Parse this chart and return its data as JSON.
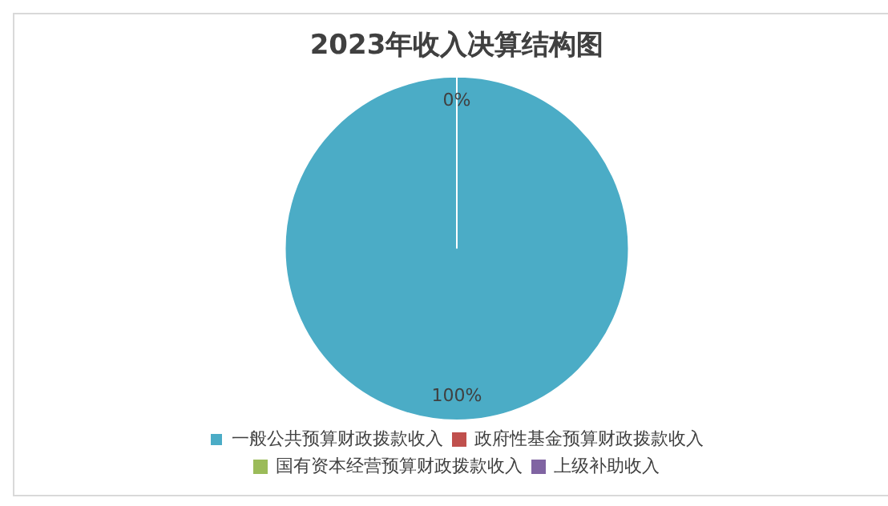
{
  "chart_data": {
    "type": "pie",
    "title": "2023年收入决算结构图",
    "categories": [
      "一般公共预算财政拨款收入",
      "政府性基金预算财政拨款收入",
      "国有资本经营预算财政拨款收入",
      "上级补助收入"
    ],
    "values": [
      100,
      0,
      0,
      0
    ],
    "colors": [
      "#4bacc6",
      "#c0504d",
      "#9bbb59",
      "#8064a2"
    ],
    "value_labels": [
      "100%",
      null,
      null,
      "0%"
    ],
    "legend": "bottom"
  }
}
